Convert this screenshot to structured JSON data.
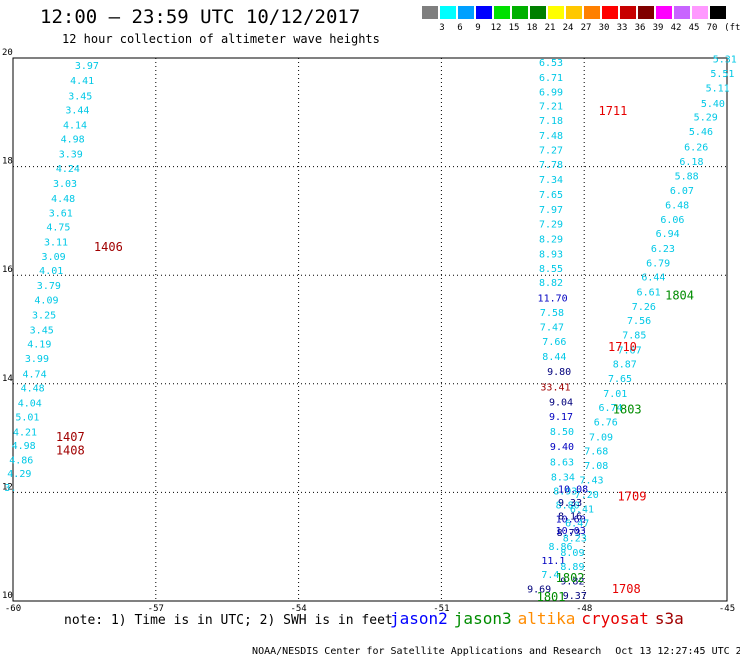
{
  "header": {
    "title": "12:00 – 23:59 UTC 10/12/2017",
    "subtitle": "12 hour collection of altimeter wave heights"
  },
  "colorbar": {
    "unit": "(ft)",
    "bins": [
      {
        "label": "3",
        "color": "#7f7f7f"
      },
      {
        "label": "6",
        "color": "#00ffff"
      },
      {
        "label": "9",
        "color": "#00a0ff"
      },
      {
        "label": "12",
        "color": "#0000ff"
      },
      {
        "label": "15",
        "color": "#00e000"
      },
      {
        "label": "18",
        "color": "#00b000"
      },
      {
        "label": "21",
        "color": "#008000"
      },
      {
        "label": "24",
        "color": "#ffff00"
      },
      {
        "label": "27",
        "color": "#ffc800"
      },
      {
        "label": "30",
        "color": "#ff8000"
      },
      {
        "label": "33",
        "color": "#ff0000"
      },
      {
        "label": "36",
        "color": "#c80000"
      },
      {
        "label": "39",
        "color": "#800000"
      },
      {
        "label": "42",
        "color": "#ff00ff"
      },
      {
        "label": "45",
        "color": "#c864ff"
      },
      {
        "label": "70",
        "color": "#ff99ff"
      },
      {
        "label": "",
        "color": "#000000"
      }
    ]
  },
  "chart_data": {
    "type": "scatter",
    "title": "12 hour collection of altimeter wave heights",
    "xlim": [
      -60,
      -45
    ],
    "ylim": [
      10,
      20
    ],
    "xticks": [
      -60,
      -57,
      -54,
      -51,
      -48,
      -45
    ],
    "yticks": [
      10,
      12,
      14,
      16,
      18,
      20
    ],
    "grid": true,
    "colors": {
      "cyan": "#00c8e6",
      "blue": "#0000c0",
      "darkred": "#a00000",
      "green": "#008c00",
      "red": "#e60000",
      "orange": "#ff8c00",
      "brightgreen": "#30c000",
      "navy": "#00007c"
    },
    "track_left": [
      {
        "lon": -58.7,
        "lat": 19.8,
        "label": "3.97",
        "c": "cyan"
      },
      {
        "lon": -58.8,
        "lat": 19.52,
        "label": "4.41",
        "c": "cyan"
      },
      {
        "lon": -58.84,
        "lat": 19.24,
        "label": "3.45",
        "c": "cyan"
      },
      {
        "lon": -58.9,
        "lat": 18.98,
        "label": "3.44",
        "c": "cyan"
      },
      {
        "lon": -58.95,
        "lat": 18.7,
        "label": "4.14",
        "c": "cyan"
      },
      {
        "lon": -59.0,
        "lat": 18.44,
        "label": "4.98",
        "c": "cyan"
      },
      {
        "lon": -59.04,
        "lat": 18.17,
        "label": "3.39",
        "c": "cyan"
      },
      {
        "lon": -59.1,
        "lat": 17.9,
        "label": "4.24",
        "c": "cyan"
      },
      {
        "lon": -59.16,
        "lat": 17.62,
        "label": "3.03",
        "c": "cyan"
      },
      {
        "lon": -59.2,
        "lat": 17.35,
        "label": "4.48",
        "c": "cyan"
      },
      {
        "lon": -59.25,
        "lat": 17.08,
        "label": "3.61",
        "c": "cyan"
      },
      {
        "lon": -59.3,
        "lat": 16.82,
        "label": "4.75",
        "c": "cyan"
      },
      {
        "lon": -59.35,
        "lat": 16.55,
        "label": "3.11",
        "c": "cyan"
      },
      {
        "lon": -59.4,
        "lat": 16.28,
        "label": "3.09",
        "c": "cyan"
      },
      {
        "lon": -59.45,
        "lat": 16.02,
        "label": "4.01",
        "c": "cyan"
      },
      {
        "lon": -59.5,
        "lat": 15.75,
        "label": "3.79",
        "c": "cyan"
      },
      {
        "lon": -59.55,
        "lat": 15.48,
        "label": "4.09",
        "c": "cyan"
      },
      {
        "lon": -59.6,
        "lat": 15.2,
        "label": "3.25",
        "c": "cyan"
      },
      {
        "lon": -59.65,
        "lat": 14.93,
        "label": "3.45",
        "c": "cyan"
      },
      {
        "lon": -59.7,
        "lat": 14.67,
        "label": "4.19",
        "c": "cyan"
      },
      {
        "lon": -59.75,
        "lat": 14.4,
        "label": "3.99",
        "c": "cyan"
      },
      {
        "lon": -59.8,
        "lat": 14.12,
        "label": "4.74",
        "c": "cyan"
      },
      {
        "lon": -59.84,
        "lat": 13.86,
        "label": "4.48",
        "c": "cyan"
      },
      {
        "lon": -59.9,
        "lat": 13.58,
        "label": "4.04",
        "c": "cyan"
      },
      {
        "lon": -59.95,
        "lat": 13.32,
        "label": "5.01",
        "c": "cyan"
      },
      {
        "lon": -60.0,
        "lat": 13.05,
        "label": "4.21",
        "c": "cyan"
      },
      {
        "lon": -60.03,
        "lat": 12.8,
        "label": "4.98",
        "c": "cyan"
      },
      {
        "lon": -60.08,
        "lat": 12.53,
        "label": "4.86",
        "c": "cyan"
      },
      {
        "lon": -60.12,
        "lat": 12.28,
        "label": "4.29",
        "c": "cyan"
      },
      {
        "lon": -60.18,
        "lat": 12.03,
        "label": "3.",
        "c": "cyan"
      }
    ],
    "track_mid": [
      {
        "lon": -48.95,
        "lat": 19.85,
        "label": "6.53",
        "c": "cyan"
      },
      {
        "lon": -48.95,
        "lat": 19.58,
        "label": "6.71",
        "c": "cyan"
      },
      {
        "lon": -48.95,
        "lat": 19.31,
        "label": "6.99",
        "c": "cyan"
      },
      {
        "lon": -48.95,
        "lat": 19.05,
        "label": "7.21",
        "c": "cyan"
      },
      {
        "lon": -48.95,
        "lat": 18.78,
        "label": "7.18",
        "c": "cyan"
      },
      {
        "lon": -48.95,
        "lat": 18.51,
        "label": "7.48",
        "c": "cyan"
      },
      {
        "lon": -48.95,
        "lat": 18.24,
        "label": "7.27",
        "c": "cyan"
      },
      {
        "lon": -48.95,
        "lat": 17.97,
        "label": "7.78",
        "c": "cyan"
      },
      {
        "lon": -48.95,
        "lat": 17.7,
        "label": "7.34",
        "c": "cyan"
      },
      {
        "lon": -48.95,
        "lat": 17.42,
        "label": "7.65",
        "c": "cyan"
      },
      {
        "lon": -48.95,
        "lat": 17.15,
        "label": "7.97",
        "c": "cyan"
      },
      {
        "lon": -48.95,
        "lat": 16.88,
        "label": "7.29",
        "c": "cyan"
      },
      {
        "lon": -48.95,
        "lat": 16.6,
        "label": "8.29",
        "c": "cyan"
      },
      {
        "lon": -48.95,
        "lat": 16.33,
        "label": "8.93",
        "c": "cyan"
      },
      {
        "lon": -48.95,
        "lat": 16.06,
        "label": "8.55",
        "c": "cyan"
      },
      {
        "lon": -48.95,
        "lat": 15.8,
        "label": "8.82",
        "c": "cyan"
      },
      {
        "lon": -48.98,
        "lat": 15.52,
        "label": "11.70",
        "c": "blue"
      },
      {
        "lon": -48.93,
        "lat": 15.25,
        "label": "7.58",
        "c": "cyan"
      },
      {
        "lon": -48.93,
        "lat": 14.98,
        "label": "7.47",
        "c": "cyan"
      },
      {
        "lon": -48.88,
        "lat": 14.71,
        "label": "7.66",
        "c": "cyan"
      },
      {
        "lon": -48.88,
        "lat": 14.44,
        "label": "8.44",
        "c": "cyan"
      },
      {
        "lon": -48.78,
        "lat": 14.16,
        "label": "9.80",
        "c": "navy"
      },
      {
        "lon": -48.92,
        "lat": 13.88,
        "label": "33.41",
        "c": "darkred"
      },
      {
        "lon": -48.74,
        "lat": 13.6,
        "label": "9.04",
        "c": "navy"
      },
      {
        "lon": -48.74,
        "lat": 13.33,
        "label": "9.17",
        "c": "blue"
      },
      {
        "lon": -48.72,
        "lat": 13.06,
        "label": "8.50",
        "c": "cyan"
      },
      {
        "lon": -48.72,
        "lat": 12.78,
        "label": "9.40",
        "c": "blue"
      },
      {
        "lon": -48.72,
        "lat": 12.5,
        "label": "8.63",
        "c": "cyan"
      },
      {
        "lon": -48.7,
        "lat": 12.22,
        "label": "8.34",
        "c": "cyan"
      },
      {
        "lon": -48.65,
        "lat": 11.96,
        "label": "8.93",
        "c": "cyan"
      },
      {
        "lon": -48.6,
        "lat": 11.7,
        "label": "8.80",
        "c": "cyan"
      },
      {
        "lon": -48.6,
        "lat": 11.45,
        "label": "10.60",
        "c": "blue"
      },
      {
        "lon": -48.58,
        "lat": 11.2,
        "label": "8.73",
        "c": "navy"
      },
      {
        "lon": -48.75,
        "lat": 10.94,
        "label": "8.86",
        "c": "cyan"
      },
      {
        "lon": -48.9,
        "lat": 10.68,
        "label": "11.1",
        "c": "blue"
      },
      {
        "lon": -48.9,
        "lat": 10.42,
        "label": "7.4",
        "c": "cyan"
      },
      {
        "lon": -49.2,
        "lat": 10.16,
        "label": "9.69",
        "c": "navy"
      },
      {
        "lon": -49.2,
        "lat": 9.9,
        "label": "8.89",
        "c": "cyan"
      },
      {
        "lon": -49.28,
        "lat": 9.64,
        "label": "9.26",
        "c": "navy"
      },
      {
        "lon": -49.3,
        "lat": 9.38,
        "label": "8.04",
        "c": "cyan"
      },
      {
        "lon": -49.35,
        "lat": 9.12,
        "label": "6.27",
        "c": "cyan"
      },
      {
        "lon": -49.43,
        "lat": 8.86,
        "label": "7.19",
        "c": "cyan"
      },
      {
        "lon": -49.5,
        "lat": 8.6,
        "label": "17.96",
        "c": "brightgreen"
      },
      {
        "lon": -49.52,
        "lat": 8.34,
        "label": "6.33",
        "c": "cyan"
      },
      {
        "lon": -49.58,
        "lat": 8.08,
        "label": "6.84",
        "c": "cyan"
      },
      {
        "lon": -49.65,
        "lat": 7.82,
        "label": "5.84",
        "c": "cyan"
      }
    ],
    "track_right": [
      {
        "lon": -45.3,
        "lat": 19.92,
        "label": "5.31",
        "c": "cyan"
      },
      {
        "lon": -45.35,
        "lat": 19.65,
        "label": "5.51",
        "c": "cyan"
      },
      {
        "lon": -45.45,
        "lat": 19.38,
        "label": "5.11",
        "c": "cyan"
      },
      {
        "lon": -45.55,
        "lat": 19.1,
        "label": "5.40",
        "c": "cyan"
      },
      {
        "lon": -45.7,
        "lat": 18.85,
        "label": "5.29",
        "c": "cyan"
      },
      {
        "lon": -45.8,
        "lat": 18.58,
        "label": "5.46",
        "c": "cyan"
      },
      {
        "lon": -45.9,
        "lat": 18.3,
        "label": "6.26",
        "c": "cyan"
      },
      {
        "lon": -46.0,
        "lat": 18.03,
        "label": "6.18",
        "c": "cyan"
      },
      {
        "lon": -46.1,
        "lat": 17.76,
        "label": "5.88",
        "c": "cyan"
      },
      {
        "lon": -46.2,
        "lat": 17.5,
        "label": "6.07",
        "c": "cyan"
      },
      {
        "lon": -46.3,
        "lat": 17.23,
        "label": "6.48",
        "c": "cyan"
      },
      {
        "lon": -46.4,
        "lat": 16.96,
        "label": "6.06",
        "c": "cyan"
      },
      {
        "lon": -46.5,
        "lat": 16.7,
        "label": "6.94",
        "c": "cyan"
      },
      {
        "lon": -46.6,
        "lat": 16.43,
        "label": "6.23",
        "c": "cyan"
      },
      {
        "lon": -46.7,
        "lat": 16.16,
        "label": "6.79",
        "c": "cyan"
      },
      {
        "lon": -46.8,
        "lat": 15.9,
        "label": "6.44",
        "c": "cyan"
      },
      {
        "lon": -46.9,
        "lat": 15.63,
        "label": "6.61",
        "c": "cyan"
      },
      {
        "lon": -47.0,
        "lat": 15.36,
        "label": "7.26",
        "c": "cyan"
      },
      {
        "lon": -47.1,
        "lat": 15.1,
        "label": "7.56",
        "c": "cyan"
      },
      {
        "lon": -47.2,
        "lat": 14.83,
        "label": "7.85",
        "c": "cyan"
      },
      {
        "lon": -47.3,
        "lat": 14.56,
        "label": "7.67",
        "c": "cyan"
      },
      {
        "lon": -47.4,
        "lat": 14.3,
        "label": "8.87",
        "c": "cyan"
      },
      {
        "lon": -47.5,
        "lat": 14.03,
        "label": "7.65",
        "c": "cyan"
      },
      {
        "lon": -47.6,
        "lat": 13.76,
        "label": "7.01",
        "c": "cyan"
      },
      {
        "lon": -47.7,
        "lat": 13.5,
        "label": "6.74",
        "c": "cyan"
      },
      {
        "lon": -47.8,
        "lat": 13.23,
        "label": "6.76",
        "c": "cyan"
      },
      {
        "lon": -47.9,
        "lat": 12.96,
        "label": "7.09",
        "c": "cyan"
      },
      {
        "lon": -48.0,
        "lat": 12.7,
        "label": "7.68",
        "c": "cyan"
      },
      {
        "lon": -48.0,
        "lat": 12.43,
        "label": "7.08",
        "c": "cyan"
      },
      {
        "lon": -48.1,
        "lat": 12.16,
        "label": "7.43",
        "c": "cyan"
      },
      {
        "lon": -48.2,
        "lat": 11.9,
        "label": "7.20",
        "c": "cyan"
      },
      {
        "lon": -48.3,
        "lat": 11.63,
        "label": "6.41",
        "c": "cyan"
      },
      {
        "lon": -48.4,
        "lat": 11.37,
        "label": "6.47",
        "c": "cyan"
      },
      {
        "lon": -48.45,
        "lat": 11.1,
        "label": "8.23",
        "c": "cyan"
      },
      {
        "lon": -48.5,
        "lat": 10.83,
        "label": "8.09",
        "c": "cyan"
      },
      {
        "lon": -48.5,
        "lat": 10.57,
        "label": "8.89",
        "c": "cyan"
      },
      {
        "lon": -48.5,
        "lat": 10.3,
        "label": "9.82",
        "c": "navy"
      },
      {
        "lon": -48.45,
        "lat": 10.04,
        "label": "9.37",
        "c": "navy"
      },
      {
        "lon": -48.4,
        "lat": 9.78,
        "label": "7.82",
        "c": "cyan"
      },
      {
        "lon": -48.35,
        "lat": 9.52,
        "label": "7.84",
        "c": "cyan"
      },
      {
        "lon": -48.35,
        "lat": 9.26,
        "label": "8.19",
        "c": "cyan"
      },
      {
        "lon": -48.3,
        "lat": 9.0,
        "label": "8.06",
        "c": "cyan"
      },
      {
        "lon": -48.2,
        "lat": 8.74,
        "label": "7.75",
        "c": "cyan"
      },
      {
        "lon": -48.15,
        "lat": 8.48,
        "label": "7.64",
        "c": "cyan"
      },
      {
        "lon": -48.15,
        "lat": 8.22,
        "label": "7.46",
        "c": "cyan"
      }
    ],
    "track_center": [
      {
        "lon": -48.55,
        "lat": 12.0,
        "label": "10.08",
        "c": "blue"
      },
      {
        "lon": -48.55,
        "lat": 11.75,
        "label": "9.33",
        "c": "navy"
      },
      {
        "lon": -48.55,
        "lat": 11.5,
        "label": "8.16",
        "c": "navy"
      },
      {
        "lon": -48.6,
        "lat": 11.23,
        "label": "10.03",
        "c": "blue"
      }
    ],
    "pass_labels": [
      {
        "lon": -58.3,
        "lat": 16.45,
        "label": "1406",
        "c": "darkred"
      },
      {
        "lon": -59.1,
        "lat": 12.95,
        "label": "1407",
        "c": "darkred"
      },
      {
        "lon": -59.1,
        "lat": 12.7,
        "label": "1408",
        "c": "darkred"
      },
      {
        "lon": -47.7,
        "lat": 18.95,
        "label": "1711",
        "c": "red"
      },
      {
        "lon": -47.5,
        "lat": 14.6,
        "label": "1710",
        "c": "red"
      },
      {
        "lon": -47.3,
        "lat": 11.85,
        "label": "1709",
        "c": "red"
      },
      {
        "lon": -47.42,
        "lat": 10.15,
        "label": "1708",
        "c": "red"
      },
      {
        "lon": -47.42,
        "lat": 9.95,
        "label": "1708",
        "c": "red"
      },
      {
        "lon": -46.3,
        "lat": 15.55,
        "label": "1804",
        "c": "green"
      },
      {
        "lon": -47.4,
        "lat": 13.45,
        "label": "1803",
        "c": "green"
      },
      {
        "lon": -48.6,
        "lat": 10.35,
        "label": "1802",
        "c": "green"
      },
      {
        "lon": -49.0,
        "lat": 10.0,
        "label": "1801",
        "c": "green"
      },
      {
        "lon": -44.75,
        "lat": 18.95,
        "label": "18",
        "c": "green"
      }
    ]
  },
  "footer": {
    "note": "note: 1) Time is in UTC; 2) SWH is in feet",
    "legend": [
      {
        "label": "jason2",
        "color": "#0000ff"
      },
      {
        "label": "jason3",
        "color": "#008c00"
      },
      {
        "label": "altika",
        "color": "#ff8c00"
      },
      {
        "label": "cryosat",
        "color": "#e60000"
      },
      {
        "label": "s3a",
        "color": "#a00000"
      }
    ],
    "credit": "NOAA/NESDIS Center for Satellite Applications and Research",
    "timestamp": "Oct 13 12:27:45 UTC 2017"
  }
}
